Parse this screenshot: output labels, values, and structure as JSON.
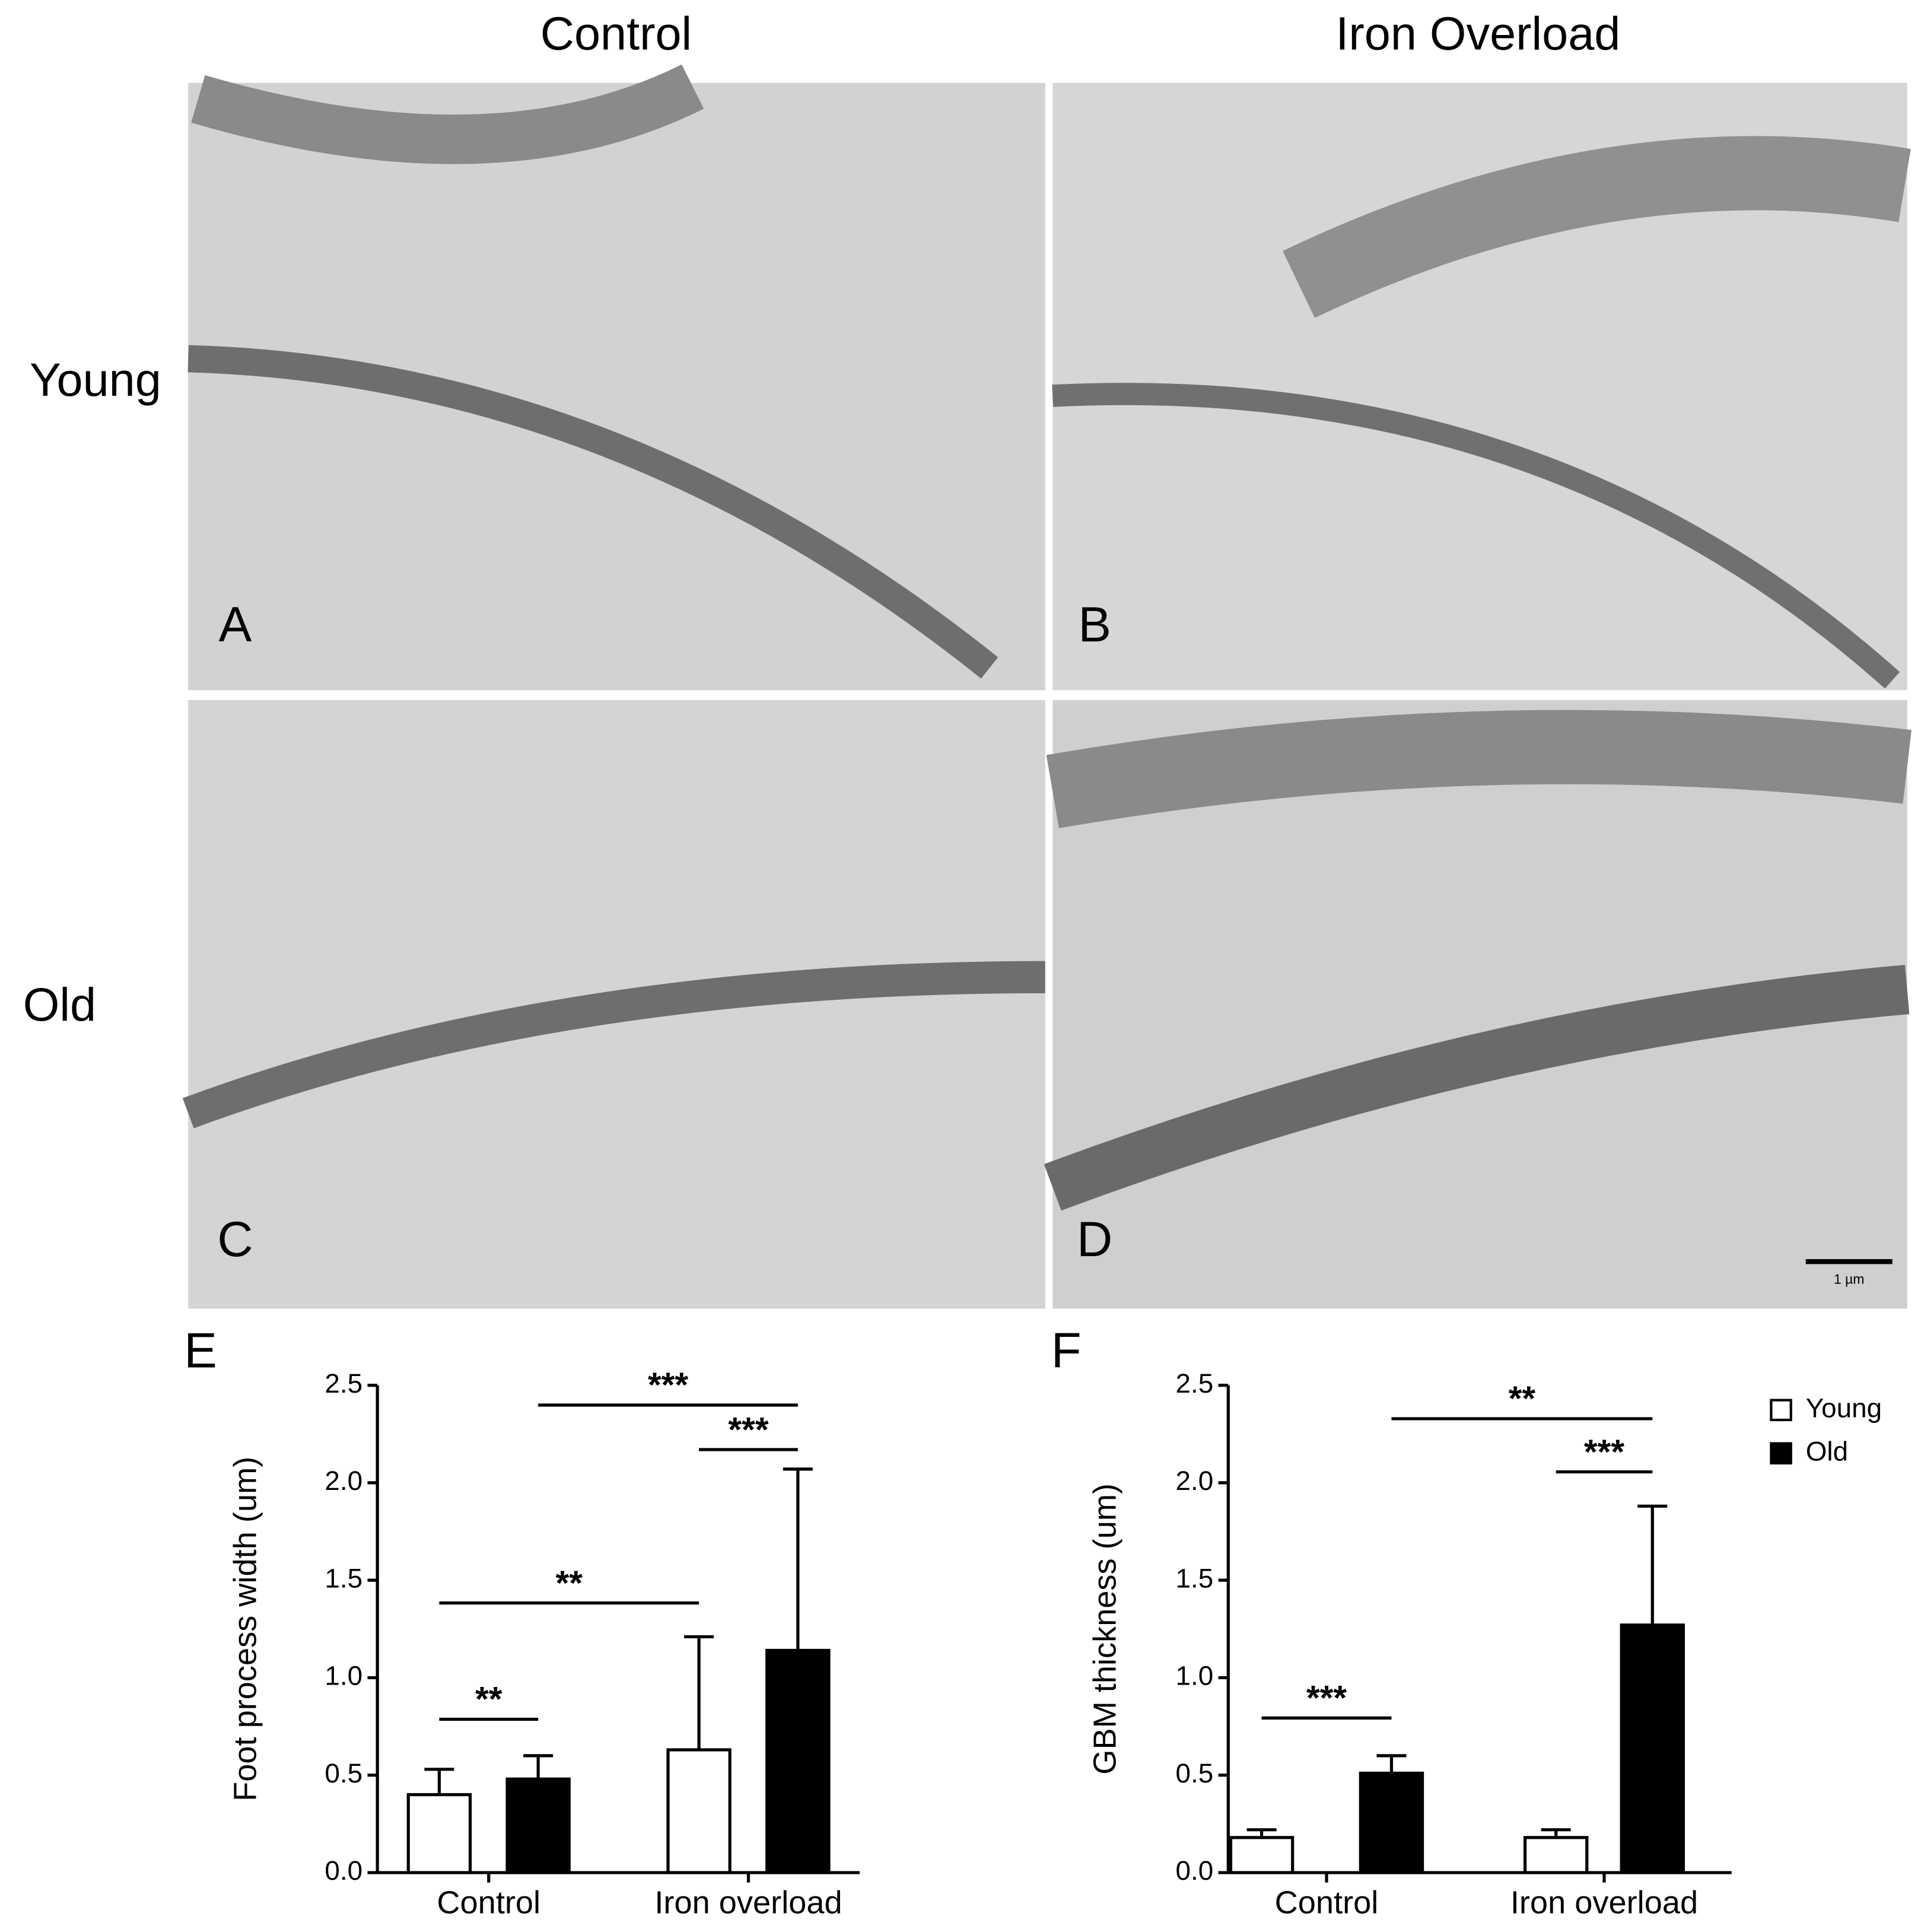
{
  "figure": {
    "column_titles": [
      "Control",
      "Iron Overload"
    ],
    "row_titles": [
      "Young",
      "Old"
    ],
    "panel_labels": [
      "A",
      "B",
      "C",
      "D"
    ],
    "scale_bar": "1 µm"
  },
  "chart_data": [
    {
      "type": "bar",
      "panel_label": "E",
      "ylabel": "Foot process width (um)",
      "categories": [
        "Control",
        "Iron overload"
      ],
      "series": [
        {
          "color": "#ffffff",
          "values": [
            0.4,
            0.63
          ],
          "errors": [
            0.13,
            0.58
          ]
        },
        {
          "color": "#000000",
          "values": [
            0.48,
            1.14
          ],
          "errors": [
            0.12,
            0.93
          ]
        }
      ],
      "ylim": [
        0,
        2.5
      ],
      "yticks": [
        {
          "value": 0,
          "label": "0.0"
        },
        0.5,
        {
          "value": 1,
          "label": "1.0"
        },
        1.5,
        {
          "value": 2,
          "label": "2.0"
        },
        2.5
      ],
      "annotations": [
        {
          "text": "**"
        },
        {
          "text": "**"
        },
        {
          "text": "***"
        },
        {
          "text": "***"
        }
      ]
    },
    {
      "type": "bar",
      "panel_label": "F",
      "ylabel": "GBM thickness (um)",
      "categories": [
        "Control",
        "Iron overload"
      ],
      "series": [
        {
          "name": "Young",
          "color": "#ffffff",
          "values": [
            0.18,
            0.18
          ],
          "errors": [
            0.04,
            0.04
          ]
        },
        {
          "name": "Old",
          "color": "#000000",
          "values": [
            0.51,
            1.27
          ],
          "errors": [
            0.09,
            0.61
          ]
        }
      ],
      "ylim": [
        0,
        2.5
      ],
      "yticks": [
        {
          "value": 0,
          "label": "0.0"
        },
        0.5,
        {
          "value": 1,
          "label": "1.0"
        },
        1.5,
        {
          "value": 2,
          "label": "2.0"
        },
        2.5
      ],
      "legend": "top-right",
      "annotations": [
        {
          "text": "***"
        },
        {
          "text": "**"
        },
        {
          "text": "***"
        }
      ]
    }
  ]
}
